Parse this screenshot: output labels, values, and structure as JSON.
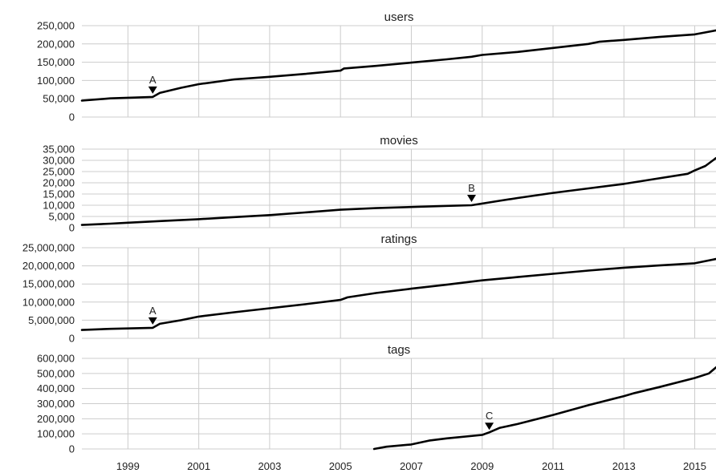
{
  "chart_data": {
    "type": "line",
    "grid": true,
    "x_axis": {
      "ticks": [
        1999,
        2001,
        2003,
        2005,
        2007,
        2009,
        2011,
        2013,
        2015
      ],
      "range": [
        1997.7,
        2015.6
      ]
    },
    "colors": {
      "line": "#000000",
      "grid": "#cccccc",
      "text": "#222222"
    },
    "panels": [
      {
        "title": "users",
        "ylim": [
          0,
          250000
        ],
        "yticks": [
          {
            "value": 0,
            "label": "0"
          },
          {
            "value": 50000,
            "label": "50,000"
          },
          {
            "value": 100000,
            "label": "100,000"
          },
          {
            "value": 150000,
            "label": "150,000"
          },
          {
            "value": 200000,
            "label": "200,000"
          },
          {
            "value": 250000,
            "label": "250,000"
          }
        ],
        "x": [
          1997.7,
          1998.5,
          1999.7,
          1999.9,
          2000.5,
          2001.0,
          2002.0,
          2003.0,
          2004.0,
          2005.0,
          2005.1,
          2006.0,
          2007.0,
          2008.0,
          2008.7,
          2009.0,
          2010.0,
          2011.0,
          2012.0,
          2012.3,
          2013.0,
          2014.0,
          2015.0,
          2015.6
        ],
        "y": [
          45000,
          51000,
          55000,
          66000,
          80000,
          90000,
          103000,
          110000,
          118000,
          127000,
          133000,
          140000,
          149000,
          158000,
          165000,
          170000,
          178000,
          189000,
          200000,
          206000,
          211000,
          219000,
          226000,
          237000
        ],
        "annotations": [
          {
            "label": "A",
            "x": 1999.7,
            "y": 55000
          }
        ]
      },
      {
        "title": "movies",
        "ylim": [
          0,
          35000
        ],
        "yticks": [
          {
            "value": 0,
            "label": "0"
          },
          {
            "value": 5000,
            "label": "5,000"
          },
          {
            "value": 10000,
            "label": "10,000"
          },
          {
            "value": 15000,
            "label": "15,000"
          },
          {
            "value": 20000,
            "label": "20,000"
          },
          {
            "value": 25000,
            "label": "25,000"
          },
          {
            "value": 30000,
            "label": "30,000"
          },
          {
            "value": 35000,
            "label": "35,000"
          }
        ],
        "x": [
          1997.7,
          1998.5,
          1999.0,
          2000.0,
          2001.0,
          2002.0,
          2003.0,
          2004.0,
          2005.0,
          2006.0,
          2007.0,
          2008.0,
          2008.7,
          2009.5,
          2010.0,
          2011.0,
          2012.0,
          2013.0,
          2014.0,
          2014.8,
          2015.0,
          2015.3,
          2015.6
        ],
        "y": [
          1200,
          1800,
          2200,
          3000,
          3800,
          4700,
          5600,
          6800,
          8000,
          8700,
          9200,
          9700,
          10000,
          12000,
          13200,
          15500,
          17500,
          19500,
          22000,
          24000,
          25500,
          27500,
          31000
        ],
        "annotations": [
          {
            "label": "B",
            "x": 2008.7,
            "y": 10000
          }
        ]
      },
      {
        "title": "ratings",
        "ylim": [
          0,
          25000000
        ],
        "yticks": [
          {
            "value": 0,
            "label": "0"
          },
          {
            "value": 5000000,
            "label": "5,000,000"
          },
          {
            "value": 10000000,
            "label": "10,000,000"
          },
          {
            "value": 15000000,
            "label": "15,000,000"
          },
          {
            "value": 20000000,
            "label": "20,000,000"
          },
          {
            "value": 25000000,
            "label": "25,000,000"
          }
        ],
        "x": [
          1997.7,
          1998.5,
          1999.7,
          1999.9,
          2000.5,
          2001.0,
          2002.0,
          2003.0,
          2004.0,
          2005.0,
          2005.2,
          2006.0,
          2007.0,
          2008.0,
          2009.0,
          2010.0,
          2011.0,
          2012.0,
          2013.0,
          2014.0,
          2015.0,
          2015.6
        ],
        "y": [
          2300000,
          2600000,
          2900000,
          4000000,
          5000000,
          6000000,
          7200000,
          8300000,
          9400000,
          10600000,
          11300000,
          12500000,
          13700000,
          14800000,
          16000000,
          16900000,
          17800000,
          18700000,
          19500000,
          20100000,
          20700000,
          21900000
        ],
        "annotations": [
          {
            "label": "A",
            "x": 1999.7,
            "y": 2900000
          }
        ]
      },
      {
        "title": "tags",
        "ylim": [
          0,
          600000
        ],
        "yticks": [
          {
            "value": 0,
            "label": "0"
          },
          {
            "value": 100000,
            "label": "100,000"
          },
          {
            "value": 200000,
            "label": "200,000"
          },
          {
            "value": 300000,
            "label": "300,000"
          },
          {
            "value": 400000,
            "label": "400,000"
          },
          {
            "value": 500000,
            "label": "500,000"
          },
          {
            "value": 600000,
            "label": "600,000"
          }
        ],
        "x": [
          2005.95,
          2006.3,
          2007.0,
          2007.5,
          2008.0,
          2009.0,
          2009.2,
          2009.5,
          2010.0,
          2011.0,
          2012.0,
          2013.0,
          2013.3,
          2014.0,
          2015.0,
          2015.4,
          2015.6
        ],
        "y": [
          0,
          15000,
          30000,
          55000,
          70000,
          93000,
          110000,
          140000,
          165000,
          225000,
          290000,
          350000,
          370000,
          410000,
          470000,
          500000,
          540000
        ],
        "annotations": [
          {
            "label": "C",
            "x": 2009.2,
            "y": 105000
          }
        ]
      }
    ]
  }
}
